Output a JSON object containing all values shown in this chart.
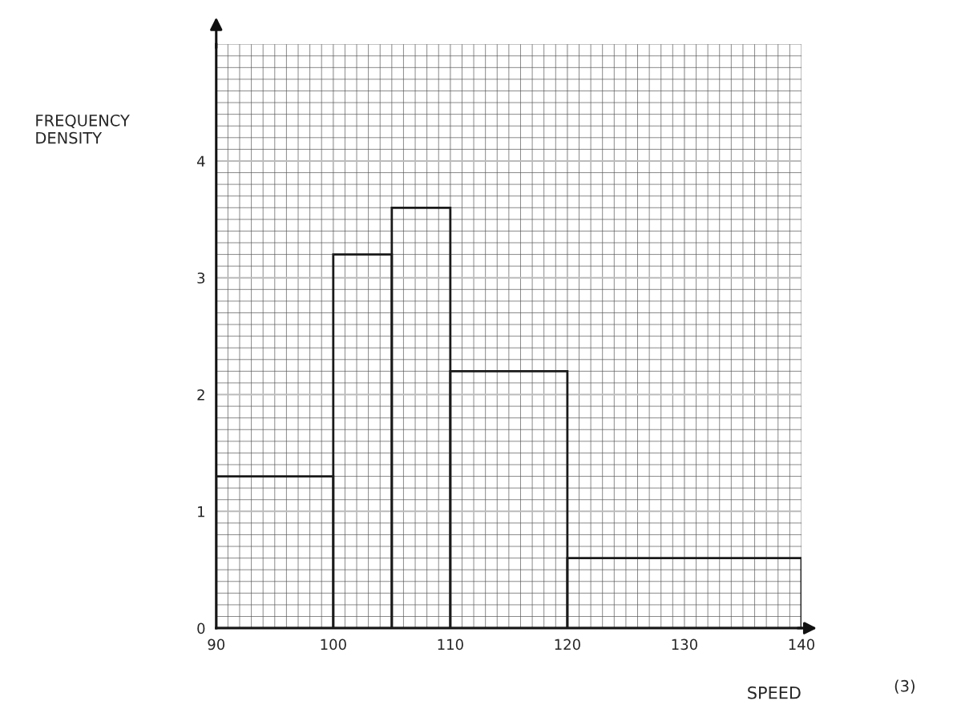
{
  "chart_data": {
    "type": "histogram",
    "xlabel": "SPEED",
    "ylabel": "FREQUENCY\nDENSITY",
    "bins": [
      90,
      100,
      105,
      110,
      120,
      140
    ],
    "values": [
      1.3,
      3.2,
      3.6,
      2.2,
      0.6
    ],
    "color": "#1a1a1a",
    "xlim": [
      90,
      140
    ],
    "ylim": [
      0,
      5
    ],
    "xticks": [
      90,
      100,
      110,
      120,
      130,
      140
    ],
    "yticks": [
      0,
      1,
      2,
      3,
      4
    ],
    "grid": true,
    "annotations": [
      "(3)"
    ]
  }
}
